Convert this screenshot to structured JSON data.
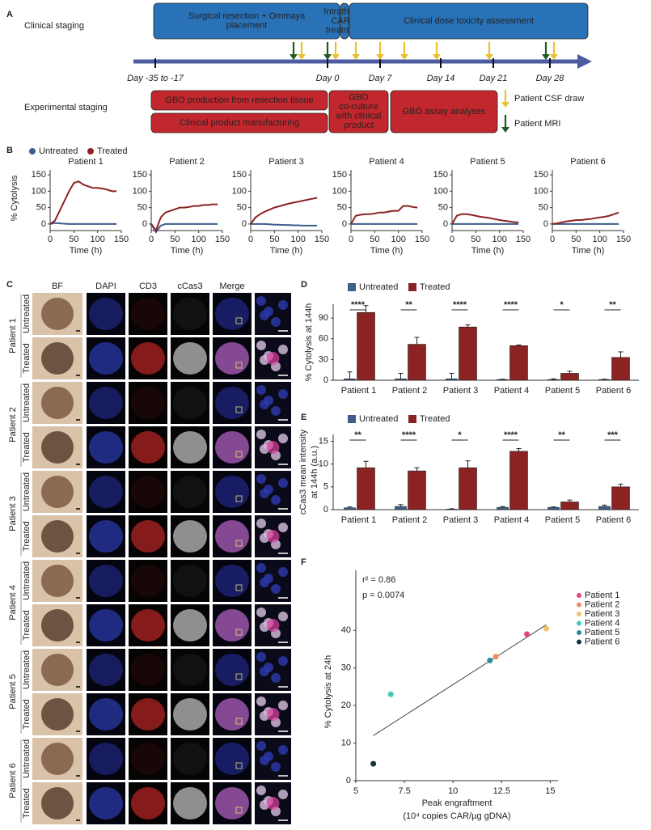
{
  "panel_labels": [
    "A",
    "B",
    "C",
    "D",
    "E",
    "F"
  ],
  "panel_a": {
    "clinical_label": "Clinical staging",
    "experimental_label": "Experimental staging",
    "clinical_boxes": [
      [
        "Surgical resection + Ommaya",
        "placement"
      ],
      [
        "Intrathecal",
        "CAR T",
        "treatment"
      ],
      [
        "Clinical dose toxicity assessment"
      ]
    ],
    "experimental_boxes": [
      [
        "GBO production from resection tissue"
      ],
      [
        "Clinical product manufacturing"
      ],
      [
        "GBO",
        "co-culture",
        "with clinical",
        "product"
      ],
      [
        "GBO assay analyses"
      ]
    ],
    "days": [
      "Day -35 to -17",
      "Day 0",
      "Day 7",
      "Day 14",
      "Day 21",
      "Day 28"
    ],
    "legend": [
      "Patient CSF draw",
      "Patient MRI"
    ]
  },
  "panel_c": {
    "columns": [
      "BF",
      "DAPI",
      "CD3",
      "cCas3",
      "Merge"
    ],
    "patients": [
      "Patient 1",
      "Patient 2",
      "Patient 3",
      "Patient 4",
      "Patient 5",
      "Patient 6"
    ],
    "conditions": [
      "Untreated",
      "Treated"
    ]
  },
  "chart_data": [
    {
      "type": "small_multiples_line",
      "series": [
        {
          "name": "Untreated",
          "color": "#3d5f8c"
        },
        {
          "name": "Treated",
          "color": "#8c2323"
        }
      ],
      "x": [
        0,
        10,
        20,
        30,
        40,
        50,
        60,
        70,
        80,
        90,
        100,
        110,
        120,
        130,
        140
      ],
      "xlim": [
        0,
        150
      ],
      "xticks": [
        0,
        50,
        100,
        150
      ],
      "ylim": [
        -20,
        165
      ],
      "yticks": [
        0,
        50,
        100,
        150
      ],
      "ylabel": "% Cytolysis",
      "xlabel": "Time (h)",
      "panels": [
        {
          "title": "Patient 1",
          "values": [
            [
              0,
              3,
              2,
              1,
              0,
              0,
              0,
              0,
              0,
              0,
              0,
              0,
              0,
              0,
              0
            ],
            [
              0,
              10,
              40,
              70,
              100,
              125,
              130,
              120,
              115,
              110,
              110,
              108,
              105,
              100,
              100
            ]
          ]
        },
        {
          "title": "Patient 2",
          "values": [
            [
              0,
              -25,
              -5,
              0,
              0,
              0,
              0,
              0,
              0,
              0,
              0,
              0,
              0,
              0,
              0
            ],
            [
              0,
              -20,
              20,
              35,
              40,
              45,
              50,
              50,
              52,
              55,
              55,
              58,
              58,
              60,
              60
            ]
          ]
        },
        {
          "title": "Patient 3",
          "values": [
            [
              0,
              0,
              0,
              0,
              -1,
              -2,
              -2,
              -3,
              -3,
              -4,
              -4,
              -5,
              -5,
              -5,
              -5
            ],
            [
              0,
              20,
              30,
              38,
              44,
              50,
              54,
              58,
              62,
              65,
              68,
              71,
              74,
              77,
              80
            ]
          ]
        },
        {
          "title": "Patient 4",
          "values": [
            [
              0,
              0,
              0,
              0,
              0,
              0,
              0,
              0,
              0,
              0,
              0,
              0,
              0,
              0,
              0
            ],
            [
              0,
              25,
              28,
              30,
              30,
              32,
              35,
              35,
              38,
              40,
              40,
              55,
              55,
              52,
              50
            ]
          ]
        },
        {
          "title": "Patient 5",
          "values": [
            [
              0,
              0,
              0,
              0,
              0,
              0,
              0,
              0,
              0,
              0,
              0,
              0,
              0,
              0,
              0
            ],
            [
              0,
              25,
              30,
              30,
              28,
              25,
              22,
              20,
              18,
              15,
              12,
              10,
              8,
              6,
              5
            ]
          ]
        },
        {
          "title": "Patient 6",
          "values": [
            [
              0,
              0,
              0,
              0,
              0,
              0,
              0,
              0,
              0,
              0,
              0,
              0,
              0,
              0,
              0
            ],
            [
              0,
              2,
              5,
              8,
              10,
              12,
              12,
              14,
              15,
              18,
              20,
              22,
              25,
              30,
              35
            ]
          ]
        }
      ]
    },
    {
      "type": "bar",
      "categories": [
        "Patient 1",
        "Patient 2",
        "Patient 3",
        "Patient 4",
        "Patient 5",
        "Patient 6"
      ],
      "series": [
        {
          "name": "Untreated",
          "color": "#3d5f8c",
          "values": [
            2,
            2,
            2,
            1,
            1,
            1
          ],
          "errors": [
            10,
            8,
            8,
            0.5,
            1,
            0.5
          ]
        },
        {
          "name": "Treated",
          "color": "#8c2323",
          "values": [
            98,
            52,
            77,
            50,
            10,
            33
          ],
          "errors": [
            10,
            10,
            3,
            1,
            3,
            8
          ]
        }
      ],
      "significance": [
        "****",
        "**",
        "****",
        "****",
        "*",
        "**"
      ],
      "ylim": [
        0,
        110
      ],
      "yticks": [
        0,
        30,
        60,
        90
      ],
      "ylabel": [
        "% Cytolysis at 144h"
      ]
    },
    {
      "type": "bar",
      "categories": [
        "Patient 1",
        "Patient 2",
        "Patient 3",
        "Patient 4",
        "Patient 5",
        "Patient 6"
      ],
      "series": [
        {
          "name": "Untreated",
          "color": "#3d5f8c",
          "values": [
            0.4,
            0.7,
            0.1,
            0.5,
            0.5,
            0.7
          ],
          "errors": [
            0.2,
            0.4,
            0.1,
            0.2,
            0.1,
            0.3
          ]
        },
        {
          "name": "Treated",
          "color": "#8c2323",
          "values": [
            9.2,
            8.5,
            9.2,
            12.8,
            1.7,
            5
          ],
          "errors": [
            1.4,
            0.7,
            1.5,
            0.6,
            0.4,
            0.6
          ]
        }
      ],
      "significance": [
        "**",
        "****",
        "*",
        "****",
        "**",
        "***"
      ],
      "ylim": [
        0,
        16.5
      ],
      "yticks": [
        0,
        5,
        10,
        15
      ],
      "ylabel": [
        "cCas3 mean intensity",
        "at 144h (a.u.)"
      ]
    },
    {
      "type": "scatter",
      "series": [
        {
          "name": "Patient 1",
          "color": "#e3496e",
          "x": [
            13.8
          ],
          "y": [
            39
          ]
        },
        {
          "name": "Patient 2",
          "color": "#ef8a5f",
          "x": [
            12.2
          ],
          "y": [
            33
          ]
        },
        {
          "name": "Patient 3",
          "color": "#f2c36b",
          "x": [
            14.8
          ],
          "y": [
            40.5
          ]
        },
        {
          "name": "Patient 4",
          "color": "#3fcdb0",
          "x": [
            6.8
          ],
          "y": [
            23
          ]
        },
        {
          "name": "Patient 5",
          "color": "#2a8a9c",
          "x": [
            11.9
          ],
          "y": [
            32
          ]
        },
        {
          "name": "Patient 6",
          "color": "#17343f",
          "x": [
            5.9
          ],
          "y": [
            4.5
          ]
        }
      ],
      "fit_line": {
        "x": [
          5.9,
          14.8
        ],
        "y": [
          12,
          41.5
        ]
      },
      "annotations": [
        "r² = 0.86",
        "p = 0.0074"
      ],
      "xlim": [
        5,
        15.4
      ],
      "xticks": [
        5,
        7.5,
        10,
        12.5,
        15
      ],
      "ylim": [
        0,
        56
      ],
      "yticks": [
        0,
        10,
        20,
        30,
        40
      ],
      "xlabel": [
        "Peak engraftment",
        "(10⁴ copies CAR/µg gDNA)"
      ],
      "ylabel": "% Cytolysis at 24h"
    }
  ]
}
